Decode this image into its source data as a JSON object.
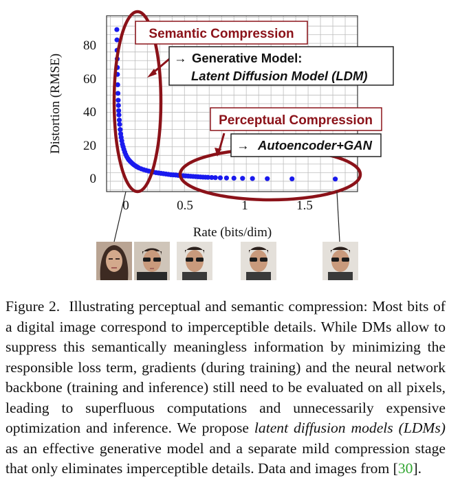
{
  "chart_data": {
    "type": "scatter",
    "xlabel": "Rate (bits/dim)",
    "ylabel": "Distortion (RMSE)",
    "xticks": [
      "0",
      "0.5",
      "1",
      "1.5"
    ],
    "yticks": [
      "0",
      "20",
      "40",
      "60",
      "80"
    ],
    "xlim": [
      -0.08,
      1.95
    ],
    "ylim": [
      -6,
      96
    ],
    "grid": true,
    "series_color": "#1a1aee",
    "x": [
      0.003,
      0.004,
      0.005,
      0.006,
      0.007,
      0.008,
      0.01,
      0.012,
      0.014,
      0.016,
      0.018,
      0.02,
      0.023,
      0.026,
      0.03,
      0.034,
      0.038,
      0.043,
      0.048,
      0.054,
      0.06,
      0.067,
      0.075,
      0.083,
      0.092,
      0.1,
      0.11,
      0.12,
      0.13,
      0.14,
      0.15,
      0.16,
      0.17,
      0.18,
      0.2,
      0.22,
      0.24,
      0.26,
      0.28,
      0.3,
      0.32,
      0.34,
      0.36,
      0.38,
      0.4,
      0.42,
      0.44,
      0.46,
      0.48,
      0.5,
      0.52,
      0.54,
      0.56,
      0.58,
      0.6,
      0.62,
      0.64,
      0.66,
      0.68,
      0.7,
      0.72,
      0.74,
      0.77,
      0.8,
      0.84,
      0.89,
      0.95,
      1.02,
      1.1,
      1.22,
      1.42,
      1.77
    ],
    "y": [
      88,
      82,
      76,
      71,
      66,
      62,
      56,
      51,
      47,
      44,
      41,
      38.5,
      35.5,
      33,
      30,
      27.5,
      25.5,
      23.5,
      21.5,
      20,
      18.5,
      17,
      15.5,
      14.3,
      13.2,
      12.4,
      11.6,
      10.9,
      10.2,
      9.6,
      9.1,
      8.6,
      8.2,
      7.8,
      7.2,
      6.7,
      6.3,
      5.9,
      5.6,
      5.3,
      5.0,
      4.8,
      4.6,
      4.4,
      4.2,
      4.0,
      3.8,
      3.7,
      3.6,
      3.4,
      3.3,
      3.2,
      3.1,
      3.0,
      2.9,
      2.8,
      2.7,
      2.6,
      2.5,
      2.4,
      2.35,
      2.3,
      2.2,
      2.1,
      2.0,
      1.9,
      1.8,
      1.7,
      1.6,
      1.5,
      1.4,
      1.3
    ]
  },
  "annotations": {
    "semantic_title": "Semantic Compression",
    "semantic_arrow": "→",
    "semantic_line1": "Generative Model:",
    "semantic_line2": "Latent Diffusion Model (LDM)",
    "perceptual_title": "Perceptual Compression",
    "perceptual_arrow": "→",
    "perceptual_line": "Autoencoder+GAN",
    "color_dark_red": "#8b1219"
  },
  "caption": {
    "figure_label": "Figure 2.",
    "text_1": "Illustrating perceptual and semantic compression: Most bits of a digital image correspond to imperceptible details. While DMs allow to suppress this semantically meaningless information by minimizing the responsible loss term, gradients (during training) and the neural network backbone (training and inference) still need to be evaluated on all pixels, leading to superfluous computations and unnecessarily expensive optimization and inference. We propose",
    "text_italic": "latent diffusion models (LDMs)",
    "text_2": "as an effective generative model and a separate mild compression stage that only eliminates imperceptible details. Data and images from",
    "ref_open": "[",
    "ref_number": "30",
    "ref_close": "]."
  }
}
